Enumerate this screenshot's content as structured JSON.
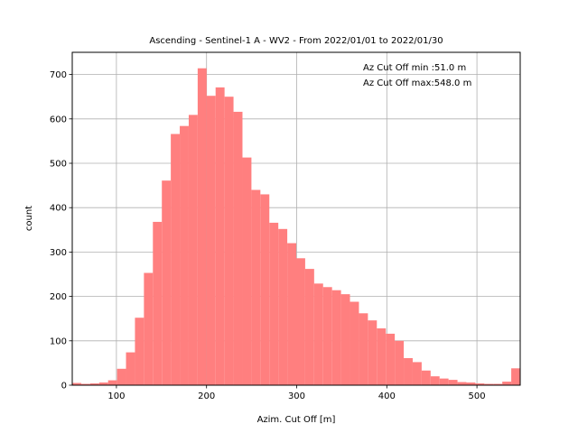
{
  "chart_data": {
    "type": "bar",
    "title": "Ascending - Sentinel-1 A - WV2 - From 2022/01/01 to 2022/01/30",
    "xlabel": "Azim. Cut Off [m]",
    "ylabel": "count",
    "xlim": [
      51,
      548
    ],
    "ylim": [
      0,
      750
    ],
    "xticks": [
      100,
      200,
      300,
      400,
      500
    ],
    "yticks": [
      0,
      100,
      200,
      300,
      400,
      500,
      600,
      700
    ],
    "grid": true,
    "bar_color": "#ff7f7f",
    "bin_width": 9.94,
    "bin_starts": [
      51.0,
      60.94,
      70.88,
      80.82,
      90.76,
      100.7,
      110.64,
      120.58,
      130.52,
      140.46,
      150.4,
      160.34,
      170.28,
      180.22,
      190.16,
      200.1,
      210.04,
      219.98,
      229.92,
      239.86,
      249.8,
      259.74,
      269.68,
      279.62,
      289.56,
      299.5,
      309.44,
      319.38,
      329.32,
      339.26,
      349.2,
      359.14,
      369.08,
      379.02,
      388.96,
      398.9,
      408.84,
      418.78,
      428.72,
      438.66,
      448.6,
      458.54,
      468.48,
      478.42,
      488.36,
      498.3,
      508.24,
      518.18,
      528.12,
      538.06
    ],
    "values": [
      5,
      3,
      4,
      6,
      11,
      37,
      74,
      152,
      253,
      368,
      461,
      566,
      584,
      609,
      714,
      652,
      671,
      650,
      616,
      513,
      440,
      430,
      366,
      352,
      320,
      286,
      262,
      229,
      221,
      214,
      205,
      188,
      162,
      146,
      128,
      116,
      100,
      61,
      52,
      33,
      20,
      15,
      12,
      7,
      6,
      4,
      3,
      3,
      8,
      38
    ],
    "annotations": [
      "Az Cut Off min :51.0 m",
      "Az Cut Off max:548.0 m"
    ]
  }
}
